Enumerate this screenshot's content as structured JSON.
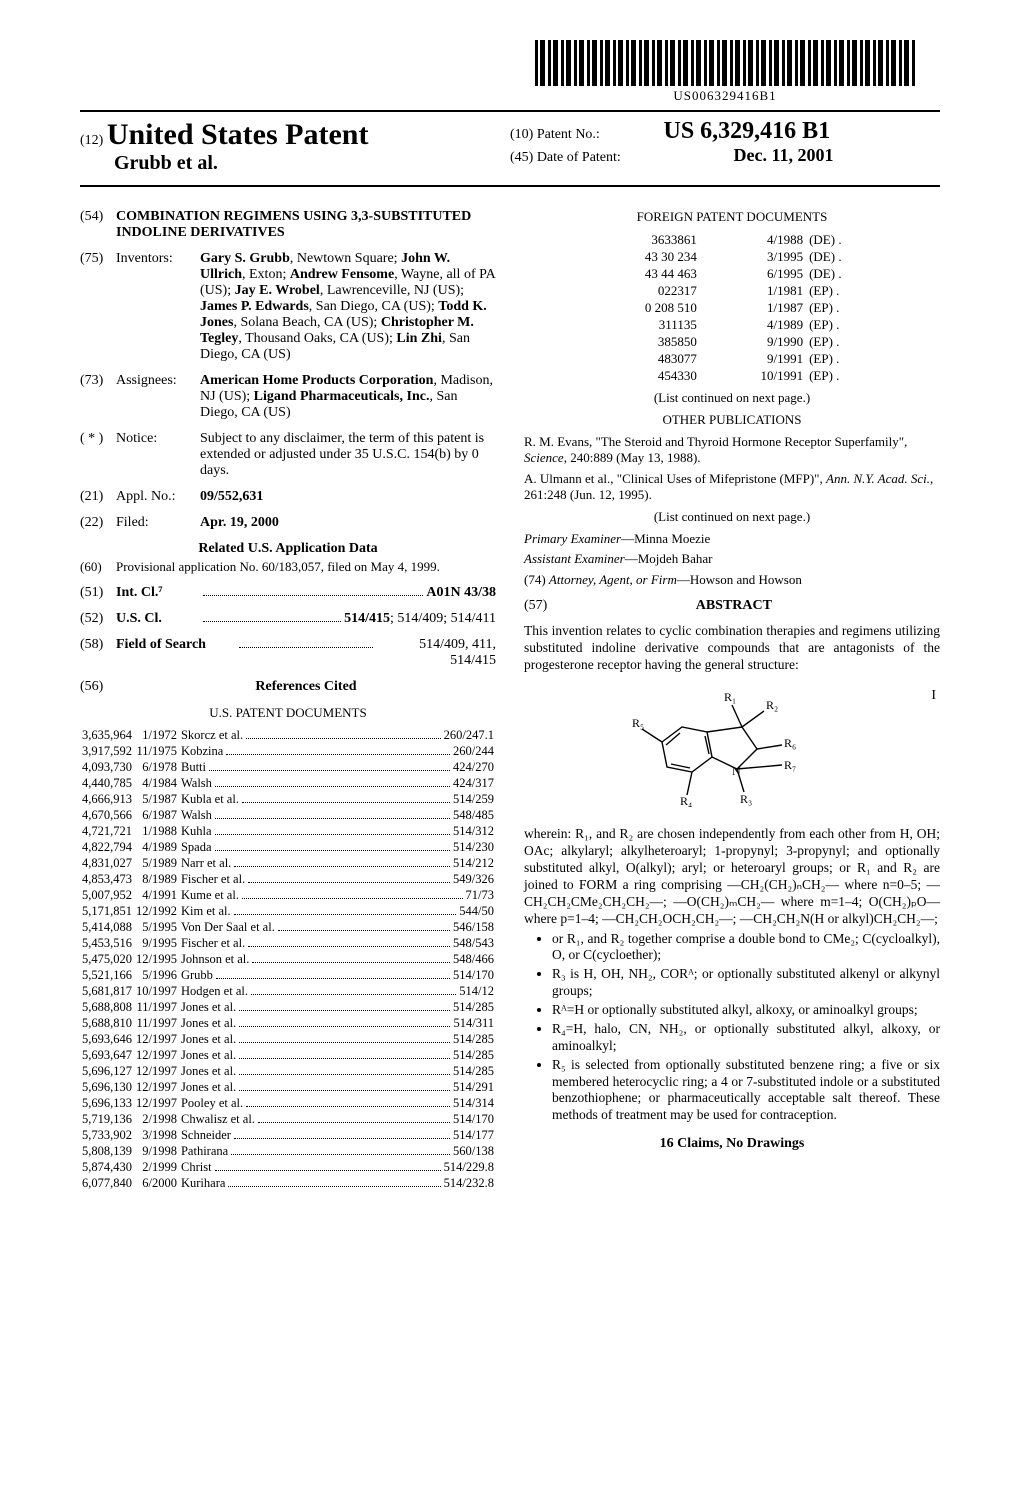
{
  "barcode_number": "US006329416B1",
  "header": {
    "country_code": "(12)",
    "doc_type": "United States Patent",
    "authors_line": "Grubb et al.",
    "patent_no_label": "(10) Patent No.:",
    "patent_no": "US 6,329,416 B1",
    "date_label": "(45) Date of Patent:",
    "date": "Dec. 11, 2001"
  },
  "title": {
    "num": "(54)",
    "text": "COMBINATION REGIMENS USING 3,3-SUBSTITUTED INDOLINE DERIVATIVES"
  },
  "inventors": {
    "num": "(75)",
    "label": "Inventors:",
    "text": "Gary S. Grubb, Newtown Square; John W. Ullrich, Exton; Andrew Fensome, Wayne, all of PA (US); Jay E. Wrobel, Lawrenceville, NJ (US); James P. Edwards, San Diego, CA (US); Todd K. Jones, Solana Beach, CA (US); Christopher M. Tegley, Thousand Oaks, CA (US); Lin Zhi, San Diego, CA (US)",
    "bold_names": [
      "Gary S. Grubb",
      "John W. Ullrich",
      "Andrew Fensome",
      "Jay E. Wrobel",
      "James P. Edwards",
      "Todd K. Jones",
      "Christopher M. Tegley",
      "Lin Zhi"
    ]
  },
  "assignees": {
    "num": "(73)",
    "label": "Assignees:",
    "text_html": "<b>American Home Products Corporation</b>, Madison, NJ (US); <b>Ligand Pharmaceuticals, Inc.</b>, San Diego, CA (US)"
  },
  "notice": {
    "num": "( * )",
    "label": "Notice:",
    "text": "Subject to any disclaimer, the term of this patent is extended or adjusted under 35 U.S.C. 154(b) by 0 days."
  },
  "appl_no": {
    "num": "(21)",
    "label": "Appl. No.:",
    "value": "09/552,631"
  },
  "filed": {
    "num": "(22)",
    "label": "Filed:",
    "value": "Apr. 19, 2000"
  },
  "related": {
    "heading": "Related U.S. Application Data",
    "num": "(60)",
    "text": "Provisional application No. 60/183,057, filed on May 4, 1999."
  },
  "int_cl": {
    "num": "(51)",
    "label": "Int. Cl.⁷",
    "value": "A01N 43/38"
  },
  "us_cl": {
    "num": "(52)",
    "label": "U.S. Cl.",
    "value_bold": "514/415",
    "value_rest": "; 514/409; 514/411"
  },
  "fos": {
    "num": "(58)",
    "label": "Field of Search",
    "value": "514/409, 411, 514/415"
  },
  "refs_heading_num": "(56)",
  "refs_heading": "References Cited",
  "us_docs_heading": "U.S. PATENT DOCUMENTS",
  "us_docs": [
    {
      "n": "3,635,964",
      "d": "1/1972",
      "a": "Skorcz et al.",
      "c": "260/247.1"
    },
    {
      "n": "3,917,592",
      "d": "11/1975",
      "a": "Kobzina",
      "c": "260/244"
    },
    {
      "n": "4,093,730",
      "d": "6/1978",
      "a": "Butti",
      "c": "424/270"
    },
    {
      "n": "4,440,785",
      "d": "4/1984",
      "a": "Walsh",
      "c": "424/317"
    },
    {
      "n": "4,666,913",
      "d": "5/1987",
      "a": "Kubla et al.",
      "c": "514/259"
    },
    {
      "n": "4,670,566",
      "d": "6/1987",
      "a": "Walsh",
      "c": "548/485"
    },
    {
      "n": "4,721,721",
      "d": "1/1988",
      "a": "Kuhla",
      "c": "514/312"
    },
    {
      "n": "4,822,794",
      "d": "4/1989",
      "a": "Spada",
      "c": "514/230"
    },
    {
      "n": "4,831,027",
      "d": "5/1989",
      "a": "Narr et al.",
      "c": "514/212"
    },
    {
      "n": "4,853,473",
      "d": "8/1989",
      "a": "Fischer et al.",
      "c": "549/326"
    },
    {
      "n": "5,007,952",
      "d": "4/1991",
      "a": "Kume et al.",
      "c": "71/73"
    },
    {
      "n": "5,171,851",
      "d": "12/1992",
      "a": "Kim et al.",
      "c": "544/50"
    },
    {
      "n": "5,414,088",
      "d": "5/1995",
      "a": "Von Der Saal et al.",
      "c": "546/158"
    },
    {
      "n": "5,453,516",
      "d": "9/1995",
      "a": "Fischer et al.",
      "c": "548/543"
    },
    {
      "n": "5,475,020",
      "d": "12/1995",
      "a": "Johnson et al.",
      "c": "548/466"
    },
    {
      "n": "5,521,166",
      "d": "5/1996",
      "a": "Grubb",
      "c": "514/170"
    },
    {
      "n": "5,681,817",
      "d": "10/1997",
      "a": "Hodgen et al.",
      "c": "514/12"
    },
    {
      "n": "5,688,808",
      "d": "11/1997",
      "a": "Jones et al.",
      "c": "514/285"
    },
    {
      "n": "5,688,810",
      "d": "11/1997",
      "a": "Jones et al.",
      "c": "514/311"
    },
    {
      "n": "5,693,646",
      "d": "12/1997",
      "a": "Jones et al.",
      "c": "514/285"
    },
    {
      "n": "5,693,647",
      "d": "12/1997",
      "a": "Jones et al.",
      "c": "514/285"
    },
    {
      "n": "5,696,127",
      "d": "12/1997",
      "a": "Jones et al.",
      "c": "514/285"
    },
    {
      "n": "5,696,130",
      "d": "12/1997",
      "a": "Jones et al.",
      "c": "514/291"
    },
    {
      "n": "5,696,133",
      "d": "12/1997",
      "a": "Pooley et al.",
      "c": "514/314"
    },
    {
      "n": "5,719,136",
      "d": "2/1998",
      "a": "Chwalisz et al.",
      "c": "514/170"
    },
    {
      "n": "5,733,902",
      "d": "3/1998",
      "a": "Schneider",
      "c": "514/177"
    },
    {
      "n": "5,808,139",
      "d": "9/1998",
      "a": "Pathirana",
      "c": "560/138"
    },
    {
      "n": "5,874,430",
      "d": "2/1999",
      "a": "Christ",
      "c": "514/229.8"
    },
    {
      "n": "6,077,840",
      "d": "6/2000",
      "a": "Kurihara",
      "c": "514/232.8"
    }
  ],
  "foreign_heading": "FOREIGN PATENT DOCUMENTS",
  "foreign_docs": [
    {
      "n": "3633861",
      "d": "4/1988",
      "c": "(DE) ."
    },
    {
      "n": "43 30 234",
      "d": "3/1995",
      "c": "(DE) ."
    },
    {
      "n": "43 44 463",
      "d": "6/1995",
      "c": "(DE) ."
    },
    {
      "n": "022317",
      "d": "1/1981",
      "c": "(EP) ."
    },
    {
      "n": "0 208 510",
      "d": "1/1987",
      "c": "(EP) ."
    },
    {
      "n": "311135",
      "d": "4/1989",
      "c": "(EP) ."
    },
    {
      "n": "385850",
      "d": "9/1990",
      "c": "(EP) ."
    },
    {
      "n": "483077",
      "d": "9/1991",
      "c": "(EP) ."
    },
    {
      "n": "454330",
      "d": "10/1991",
      "c": "(EP) ."
    }
  ],
  "list_continued": "(List continued on next page.)",
  "other_pubs_heading": "OTHER PUBLICATIONS",
  "other_pubs": [
    "R. M. Evans, \"The Steroid and Thyroid Hormone Receptor Superfamily\", <i>Science</i>, 240:889 (May 13, 1988).",
    "A. Ulmann et al., \"Clinical Uses of Mifepristone (MFP)\", <i>Ann. N.Y. Acad. Sci.</i>, 261:248 (Jun. 12, 1995)."
  ],
  "examiner_primary_label": "Primary Examiner",
  "examiner_primary": "—Minna Moezie",
  "examiner_assistant_label": "Assistant Examiner",
  "examiner_assistant": "—Mojdeh Bahar",
  "attorney_num": "(74)",
  "attorney_label": "Attorney, Agent, or Firm",
  "attorney": "—Howson and Howson",
  "abstract_num": "(57)",
  "abstract_heading": "ABSTRACT",
  "abstract_intro": "This invention relates to cyclic combination therapies and regimens utilizing substituted indoline derivative compounds that are antagonists of the progesterone receptor having the general structure:",
  "formula_label": "I",
  "abstract_wherein": "wherein: R₁, and R₂ are chosen independently from each other from H, OH; OAc; alkylaryl; alkylheteroaryl; 1-propynyl; 3-propynyl; and optionally substituted alkyl, O(alkyl); aryl; or heteroaryl groups; or R₁ and R₂ are joined to FORM a ring comprising —CH₂(CH₂)ₙCH₂— where n=0–5; —CH₂CH₂CMe₂CH₂CH₂—; —O(CH₂)ₘCH₂— where m=1–4; O(CH₂)ₚO— where p=1–4; —CH₂CH₂OCH₂CH₂—; —CH₂CH₂N(H or alkyl)CH₂CH₂—;",
  "abstract_bullets": [
    "or R₁, and R₂ together comprise a double bond to CMe₂; C(cycloalkyl), O, or C(cycloether);",
    "R₃ is H, OH, NH₂, CORᴬ; or optionally substituted alkenyl or alkynyl groups;",
    "Rᴬ=H or optionally substituted alkyl, alkoxy, or aminoalkyl groups;",
    "R₄=H, halo, CN, NH₂, or optionally substituted alkyl, alkoxy, or aminoalkyl;",
    "R₅ is selected from optionally substituted benzene ring; a five or six membered heterocyclic ring; a 4 or 7-substituted indole or a substituted benzothiophene; or pharmaceutically acceptable salt thereof. These methods of treatment may be used for contraception."
  ],
  "claims_line": "16 Claims, No Drawings"
}
